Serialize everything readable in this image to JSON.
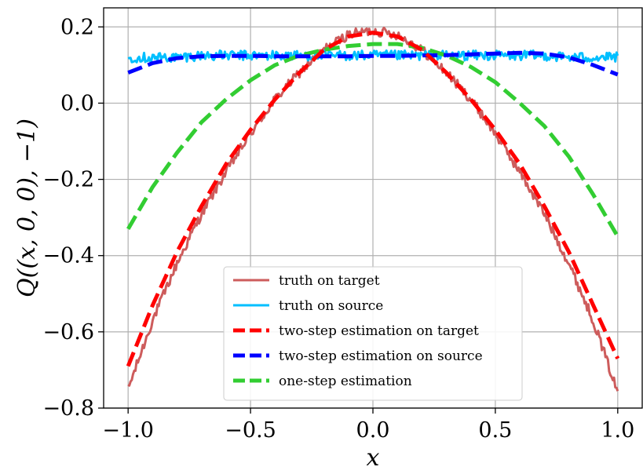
{
  "chart_data": {
    "type": "line",
    "title": "",
    "xlabel": "x",
    "ylabel": "Q((x, 0, 0), −1)",
    "xlim": [
      -1.1,
      1.1
    ],
    "ylim": [
      -0.8,
      0.25
    ],
    "x_ticks": [
      -1.0,
      -0.5,
      0.0,
      0.5,
      1.0
    ],
    "x_tick_labels": [
      "−1.0",
      "−0.5",
      "0.0",
      "0.5",
      "1.0"
    ],
    "y_ticks": [
      -0.8,
      -0.6,
      -0.4,
      -0.2,
      0.0,
      0.2
    ],
    "y_tick_labels": [
      "−0.8",
      "−0.6",
      "−0.4",
      "−0.2",
      "0.0",
      "0.2"
    ],
    "grid": true,
    "legend_position": "lower-center",
    "series": [
      {
        "name": "truth on target",
        "style": "solid-noisy",
        "color": "#cd5c5c",
        "x": [
          -1.0,
          -0.9,
          -0.8,
          -0.7,
          -0.6,
          -0.5,
          -0.4,
          -0.3,
          -0.2,
          -0.1,
          0.0,
          0.1,
          0.2,
          0.3,
          0.4,
          0.5,
          0.6,
          0.7,
          0.8,
          0.9,
          1.0
        ],
        "y": [
          -0.75,
          -0.57,
          -0.42,
          -0.29,
          -0.18,
          -0.08,
          0.01,
          0.08,
          0.14,
          0.18,
          0.19,
          0.18,
          0.14,
          0.08,
          0.01,
          -0.08,
          -0.18,
          -0.29,
          -0.42,
          -0.57,
          -0.76
        ]
      },
      {
        "name": "truth on source",
        "style": "solid-noisy",
        "color": "#00bfff",
        "x": [
          -1.0,
          -0.9,
          -0.8,
          -0.7,
          -0.6,
          -0.5,
          -0.4,
          -0.3,
          -0.2,
          -0.1,
          0.0,
          0.1,
          0.2,
          0.3,
          0.4,
          0.5,
          0.6,
          0.7,
          0.8,
          0.9,
          1.0
        ],
        "y": [
          0.12,
          0.12,
          0.12,
          0.125,
          0.125,
          0.125,
          0.125,
          0.125,
          0.125,
          0.125,
          0.125,
          0.125,
          0.125,
          0.125,
          0.125,
          0.125,
          0.125,
          0.125,
          0.12,
          0.12,
          0.12
        ]
      },
      {
        "name": "two-step estimation on target",
        "style": "dashed",
        "color": "#ff0000",
        "x": [
          -1.0,
          -0.9,
          -0.8,
          -0.7,
          -0.6,
          -0.5,
          -0.4,
          -0.3,
          -0.2,
          -0.1,
          0.0,
          0.1,
          0.2,
          0.3,
          0.4,
          0.5,
          0.6,
          0.7,
          0.8,
          0.9,
          1.0
        ],
        "y": [
          -0.69,
          -0.53,
          -0.39,
          -0.27,
          -0.16,
          -0.07,
          0.01,
          0.08,
          0.14,
          0.175,
          0.185,
          0.175,
          0.14,
          0.08,
          0.01,
          -0.07,
          -0.16,
          -0.27,
          -0.39,
          -0.53,
          -0.67
        ]
      },
      {
        "name": "two-step estimation on source",
        "style": "dashed",
        "color": "#0000ff",
        "x": [
          -1.0,
          -0.9,
          -0.8,
          -0.7,
          -0.6,
          -0.5,
          -0.4,
          -0.3,
          -0.2,
          -0.1,
          0.0,
          0.1,
          0.2,
          0.3,
          0.4,
          0.5,
          0.6,
          0.7,
          0.8,
          0.9,
          1.0
        ],
        "y": [
          0.08,
          0.105,
          0.118,
          0.123,
          0.124,
          0.124,
          0.123,
          0.123,
          0.123,
          0.123,
          0.124,
          0.124,
          0.125,
          0.126,
          0.128,
          0.13,
          0.132,
          0.13,
          0.12,
          0.1,
          0.075
        ]
      },
      {
        "name": "one-step estimation",
        "style": "dashed",
        "color": "#32cd32",
        "x": [
          -1.0,
          -0.9,
          -0.8,
          -0.7,
          -0.6,
          -0.5,
          -0.4,
          -0.3,
          -0.2,
          -0.1,
          0.0,
          0.1,
          0.2,
          0.3,
          0.4,
          0.5,
          0.6,
          0.7,
          0.8,
          0.9,
          1.0
        ],
        "y": [
          -0.33,
          -0.22,
          -0.13,
          -0.05,
          0.01,
          0.06,
          0.1,
          0.125,
          0.14,
          0.15,
          0.155,
          0.155,
          0.145,
          0.125,
          0.095,
          0.055,
          0.0,
          -0.06,
          -0.14,
          -0.24,
          -0.35
        ]
      }
    ]
  }
}
